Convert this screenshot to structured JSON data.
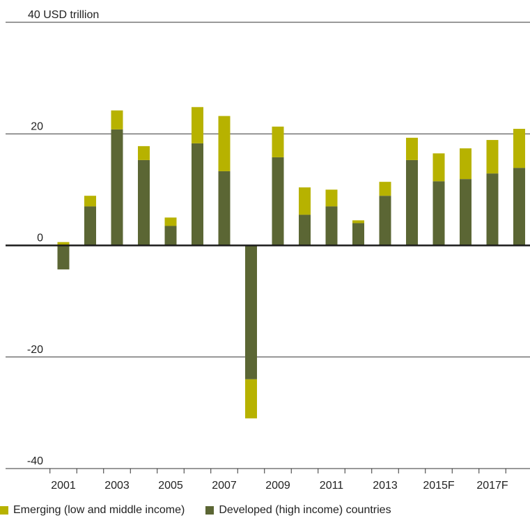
{
  "chart_data": {
    "type": "bar",
    "stacked": true,
    "unit_label": "USD trillion",
    "ylim": [
      -40,
      40
    ],
    "y_ticks": [
      40,
      20,
      0,
      -20,
      -40
    ],
    "grid": true,
    "legend_position": "bottom",
    "categories": [
      "2001",
      "2002",
      "2003",
      "2004",
      "2005",
      "2006",
      "2007",
      "2008",
      "2009",
      "2010",
      "2011",
      "2012",
      "2013",
      "2014",
      "2015F",
      "2016F",
      "2017F",
      "2018F"
    ],
    "x_tick_labels": [
      "2001",
      "2003",
      "2005",
      "2007",
      "2009",
      "2011",
      "2013",
      "2015F",
      "2017F"
    ],
    "series": [
      {
        "name": "Developed (high income) countries",
        "color": "#5b6634",
        "values": [
          -4.3,
          7.0,
          20.8,
          15.3,
          3.5,
          18.3,
          13.3,
          -24.0,
          15.8,
          5.5,
          7.0,
          4.0,
          8.9,
          15.3,
          11.5,
          11.9,
          12.9,
          13.9
        ]
      },
      {
        "name": "Emerging (low and middle income)",
        "color": "#b7b200",
        "values": [
          0.6,
          1.9,
          3.4,
          2.5,
          1.5,
          6.5,
          9.9,
          -7.0,
          5.5,
          4.9,
          3.0,
          0.5,
          2.5,
          4.0,
          5.0,
          5.5,
          6.0,
          7.0
        ]
      }
    ]
  },
  "legend": {
    "emerging_label": "Emerging (low and middle income)",
    "developed_label": "Developed (high income) countries",
    "emerging_color": "#b7b200",
    "developed_color": "#5b6634"
  }
}
